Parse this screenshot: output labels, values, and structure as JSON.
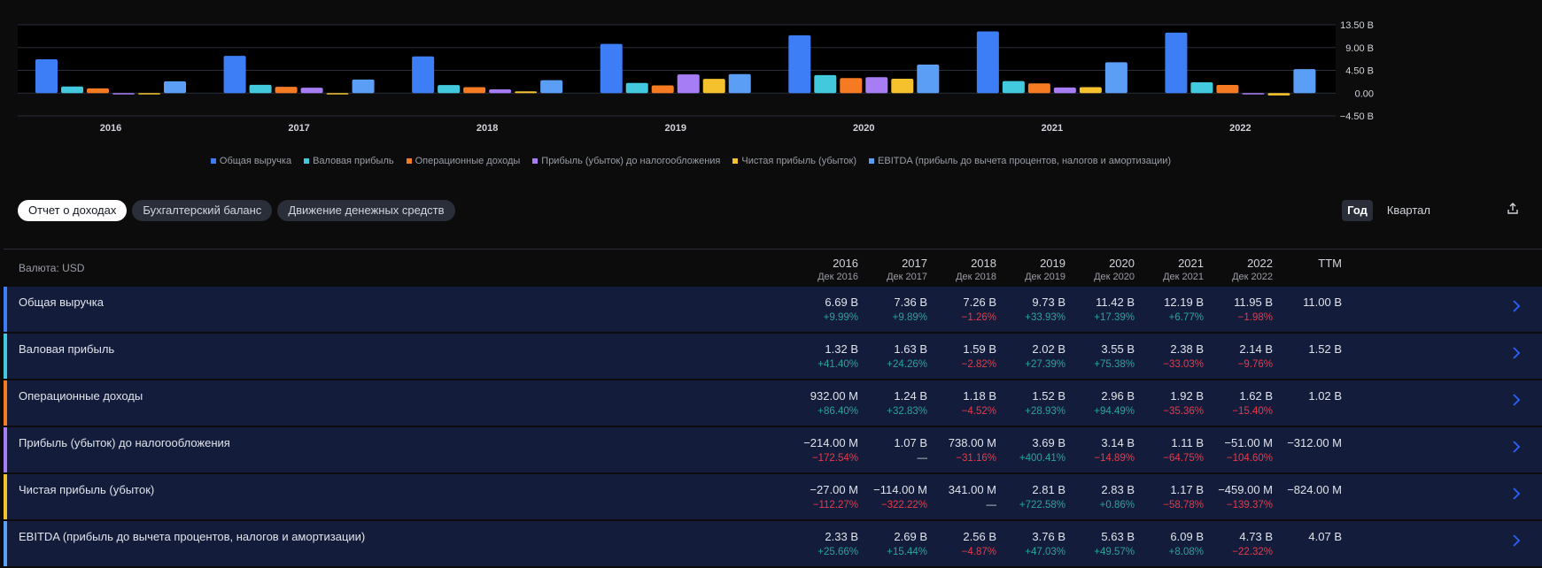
{
  "chart_data": {
    "type": "bar",
    "categories": [
      "2016",
      "2017",
      "2018",
      "2019",
      "2020",
      "2021",
      "2022"
    ],
    "series": [
      {
        "name": "Общая выручка",
        "color": "#3d7df5",
        "values": [
          6.69,
          7.36,
          7.26,
          9.73,
          11.42,
          12.19,
          11.95
        ]
      },
      {
        "name": "Валовая прибыль",
        "color": "#43c9dd",
        "values": [
          1.32,
          1.63,
          1.59,
          2.02,
          3.55,
          2.38,
          2.14
        ]
      },
      {
        "name": "Операционные доходы",
        "color": "#f57a22",
        "values": [
          0.932,
          1.24,
          1.18,
          1.52,
          2.96,
          1.92,
          1.62
        ]
      },
      {
        "name": "Прибыль (убыток) до налогообложения",
        "color": "#a77df5",
        "values": [
          -0.214,
          1.07,
          0.738,
          3.69,
          3.14,
          1.11,
          -0.051
        ]
      },
      {
        "name": "Чистая прибыль (убыток)",
        "color": "#f5c22e",
        "values": [
          -0.027,
          -0.114,
          0.341,
          2.81,
          2.83,
          1.17,
          -0.459
        ]
      },
      {
        "name": "EBITDA (прибыль до вычета процентов, налогов и амортизации)",
        "color": "#5b9ef5",
        "values": [
          2.33,
          2.69,
          2.56,
          3.76,
          5.63,
          6.09,
          4.73
        ]
      }
    ],
    "y_ticks": [
      "13.50 B",
      "9.00 B",
      "4.50 B",
      "0.00",
      "−4.50 B"
    ],
    "y_tick_values": [
      13.5,
      9,
      4.5,
      0,
      -4.5
    ],
    "ylim": [
      -4.5,
      13.5
    ],
    "legend_position": "bottom"
  },
  "tabs": [
    "Отчет о доходах",
    "Бухгалтерский баланс",
    "Движение денежных средств"
  ],
  "period": {
    "year": "Год",
    "quarter": "Квартал"
  },
  "table": {
    "currency_label": "Валюта: USD",
    "columns": [
      {
        "year": "2016",
        "sub": "Дек 2016"
      },
      {
        "year": "2017",
        "sub": "Дек 2017"
      },
      {
        "year": "2018",
        "sub": "Дек 2018"
      },
      {
        "year": "2019",
        "sub": "Дек 2019"
      },
      {
        "year": "2020",
        "sub": "Дек 2020"
      },
      {
        "year": "2021",
        "sub": "Дек 2021"
      },
      {
        "year": "2022",
        "sub": "Дек 2022"
      },
      {
        "year": "TTM",
        "sub": ""
      }
    ],
    "rows": [
      {
        "label": "Общая выручка",
        "color": "#3d7df5",
        "values": [
          "6.69 B",
          "7.36 B",
          "7.26 B",
          "9.73 B",
          "11.42 B",
          "12.19 B",
          "11.95 B",
          "11.00 B"
        ],
        "changes": [
          "+9.99%",
          "+9.89%",
          "−1.26%",
          "+33.93%",
          "+17.39%",
          "+6.77%",
          "−1.98%",
          ""
        ]
      },
      {
        "label": "Валовая прибыль",
        "color": "#43c9dd",
        "values": [
          "1.32 B",
          "1.63 B",
          "1.59 B",
          "2.02 B",
          "3.55 B",
          "2.38 B",
          "2.14 B",
          "1.52 B"
        ],
        "changes": [
          "+41.40%",
          "+24.26%",
          "−2.82%",
          "+27.39%",
          "+75.38%",
          "−33.03%",
          "−9.76%",
          ""
        ]
      },
      {
        "label": "Операционные доходы",
        "color": "#f57a22",
        "values": [
          "932.00 M",
          "1.24 B",
          "1.18 B",
          "1.52 B",
          "2.96 B",
          "1.92 B",
          "1.62 B",
          "1.02 B"
        ],
        "changes": [
          "+86.40%",
          "+32.83%",
          "−4.52%",
          "+28.93%",
          "+94.49%",
          "−35.36%",
          "−15.40%",
          ""
        ]
      },
      {
        "label": "Прибыль (убыток) до налогообложения",
        "color": "#a77df5",
        "values": [
          "−214.00 M",
          "1.07 B",
          "738.00 M",
          "3.69 B",
          "3.14 B",
          "1.11 B",
          "−51.00 M",
          "−312.00 M"
        ],
        "changes": [
          "−172.54%",
          "—",
          "−31.16%",
          "+400.41%",
          "−14.89%",
          "−64.75%",
          "−104.60%",
          ""
        ]
      },
      {
        "label": "Чистая прибыль (убыток)",
        "color": "#f5c22e",
        "values": [
          "−27.00 M",
          "−114.00 M",
          "341.00 M",
          "2.81 B",
          "2.83 B",
          "1.17 B",
          "−459.00 M",
          "−824.00 M"
        ],
        "changes": [
          "−112.27%",
          "−322.22%",
          "—",
          "+722.58%",
          "+0.86%",
          "−58.78%",
          "−139.37%",
          ""
        ]
      },
      {
        "label": "EBITDA (прибыль до вычета процентов, налогов и амортизации)",
        "color": "#5b9ef5",
        "values": [
          "2.33 B",
          "2.69 B",
          "2.56 B",
          "3.76 B",
          "5.63 B",
          "6.09 B",
          "4.73 B",
          "4.07 B"
        ],
        "changes": [
          "+25.66%",
          "+15.44%",
          "−4.87%",
          "+47.03%",
          "+49.57%",
          "+8.08%",
          "−22.32%",
          ""
        ]
      }
    ]
  }
}
